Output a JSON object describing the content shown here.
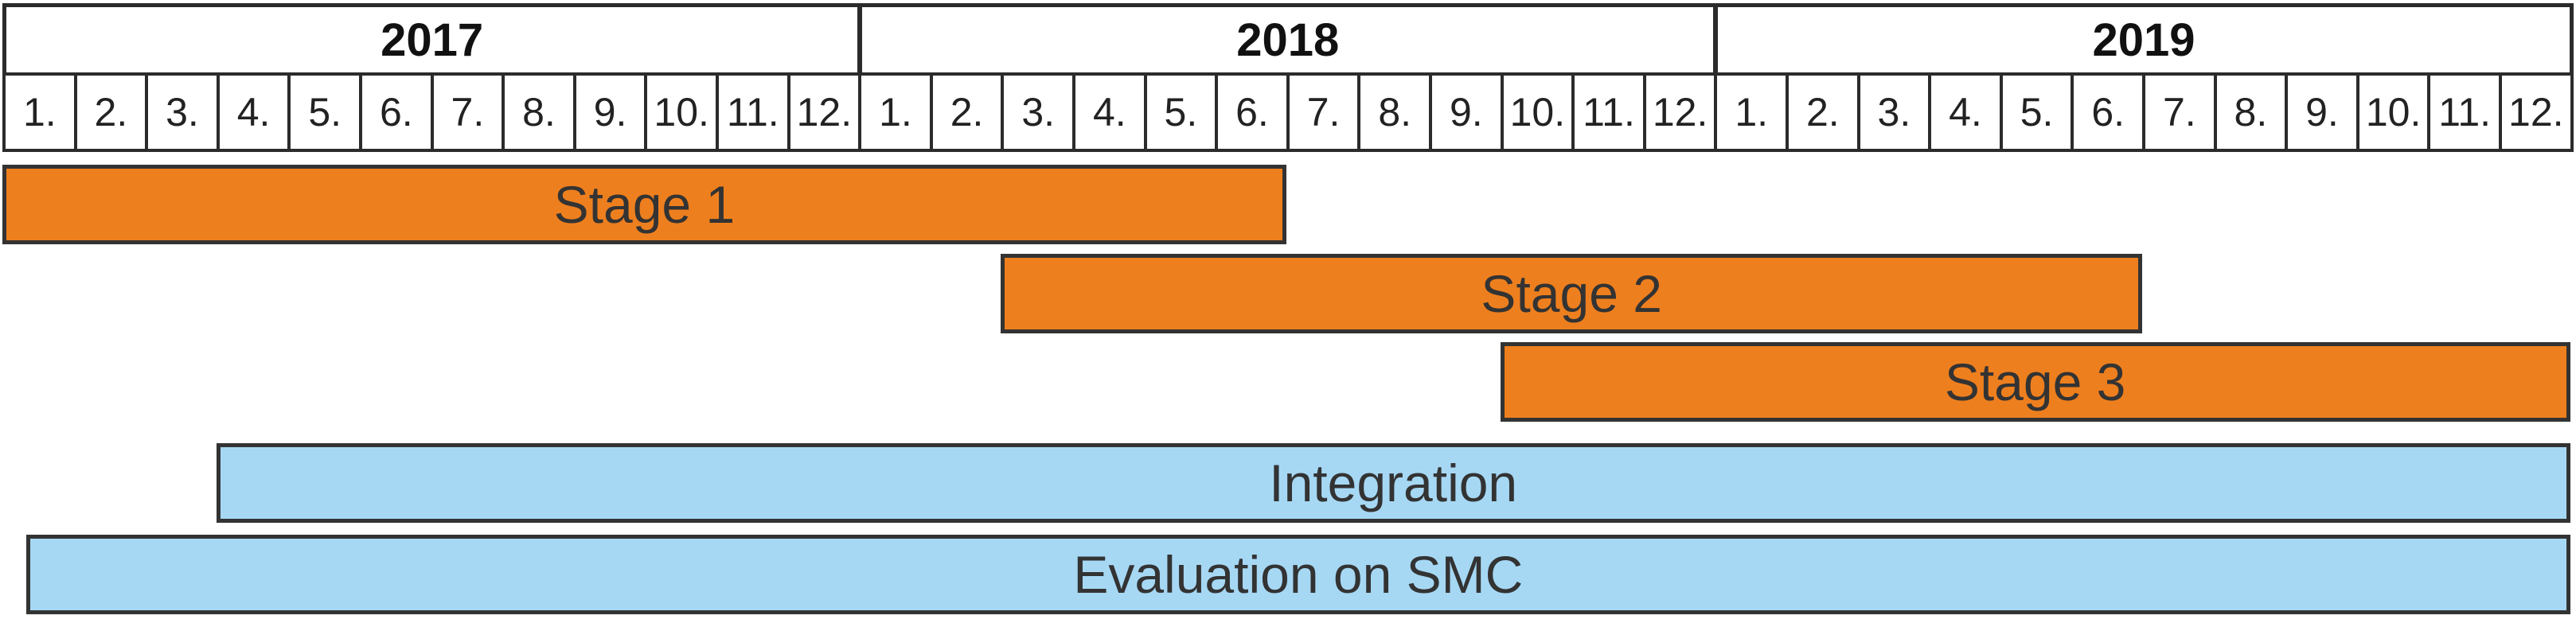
{
  "timeline": {
    "years": [
      "2017",
      "2018",
      "2019"
    ],
    "months": [
      "1.",
      "2.",
      "3.",
      "4.",
      "5.",
      "6.",
      "7.",
      "8.",
      "9.",
      "10.",
      "11.",
      "12."
    ]
  },
  "colors": {
    "stage": "#EE7F1E",
    "support": "#A6D8F4",
    "border": "#333333"
  },
  "tasks": [
    {
      "label": "Stage 1",
      "start": "2017-01",
      "end": "2018-06",
      "color": "#EE7F1E"
    },
    {
      "label": "Stage 2",
      "start": "2018-03",
      "end": "2019-06",
      "color": "#EE7F1E"
    },
    {
      "label": "Stage 3",
      "start": "2018-10",
      "end": "2019-12",
      "color": "#EE7F1E"
    },
    {
      "label": "Integration",
      "start": "2017-04",
      "end": "2019-12",
      "color": "#A6D8F4"
    },
    {
      "label": "Evaluation on SMC",
      "start": "2017-01",
      "end": "2019-12",
      "color": "#A6D8F4"
    }
  ]
}
